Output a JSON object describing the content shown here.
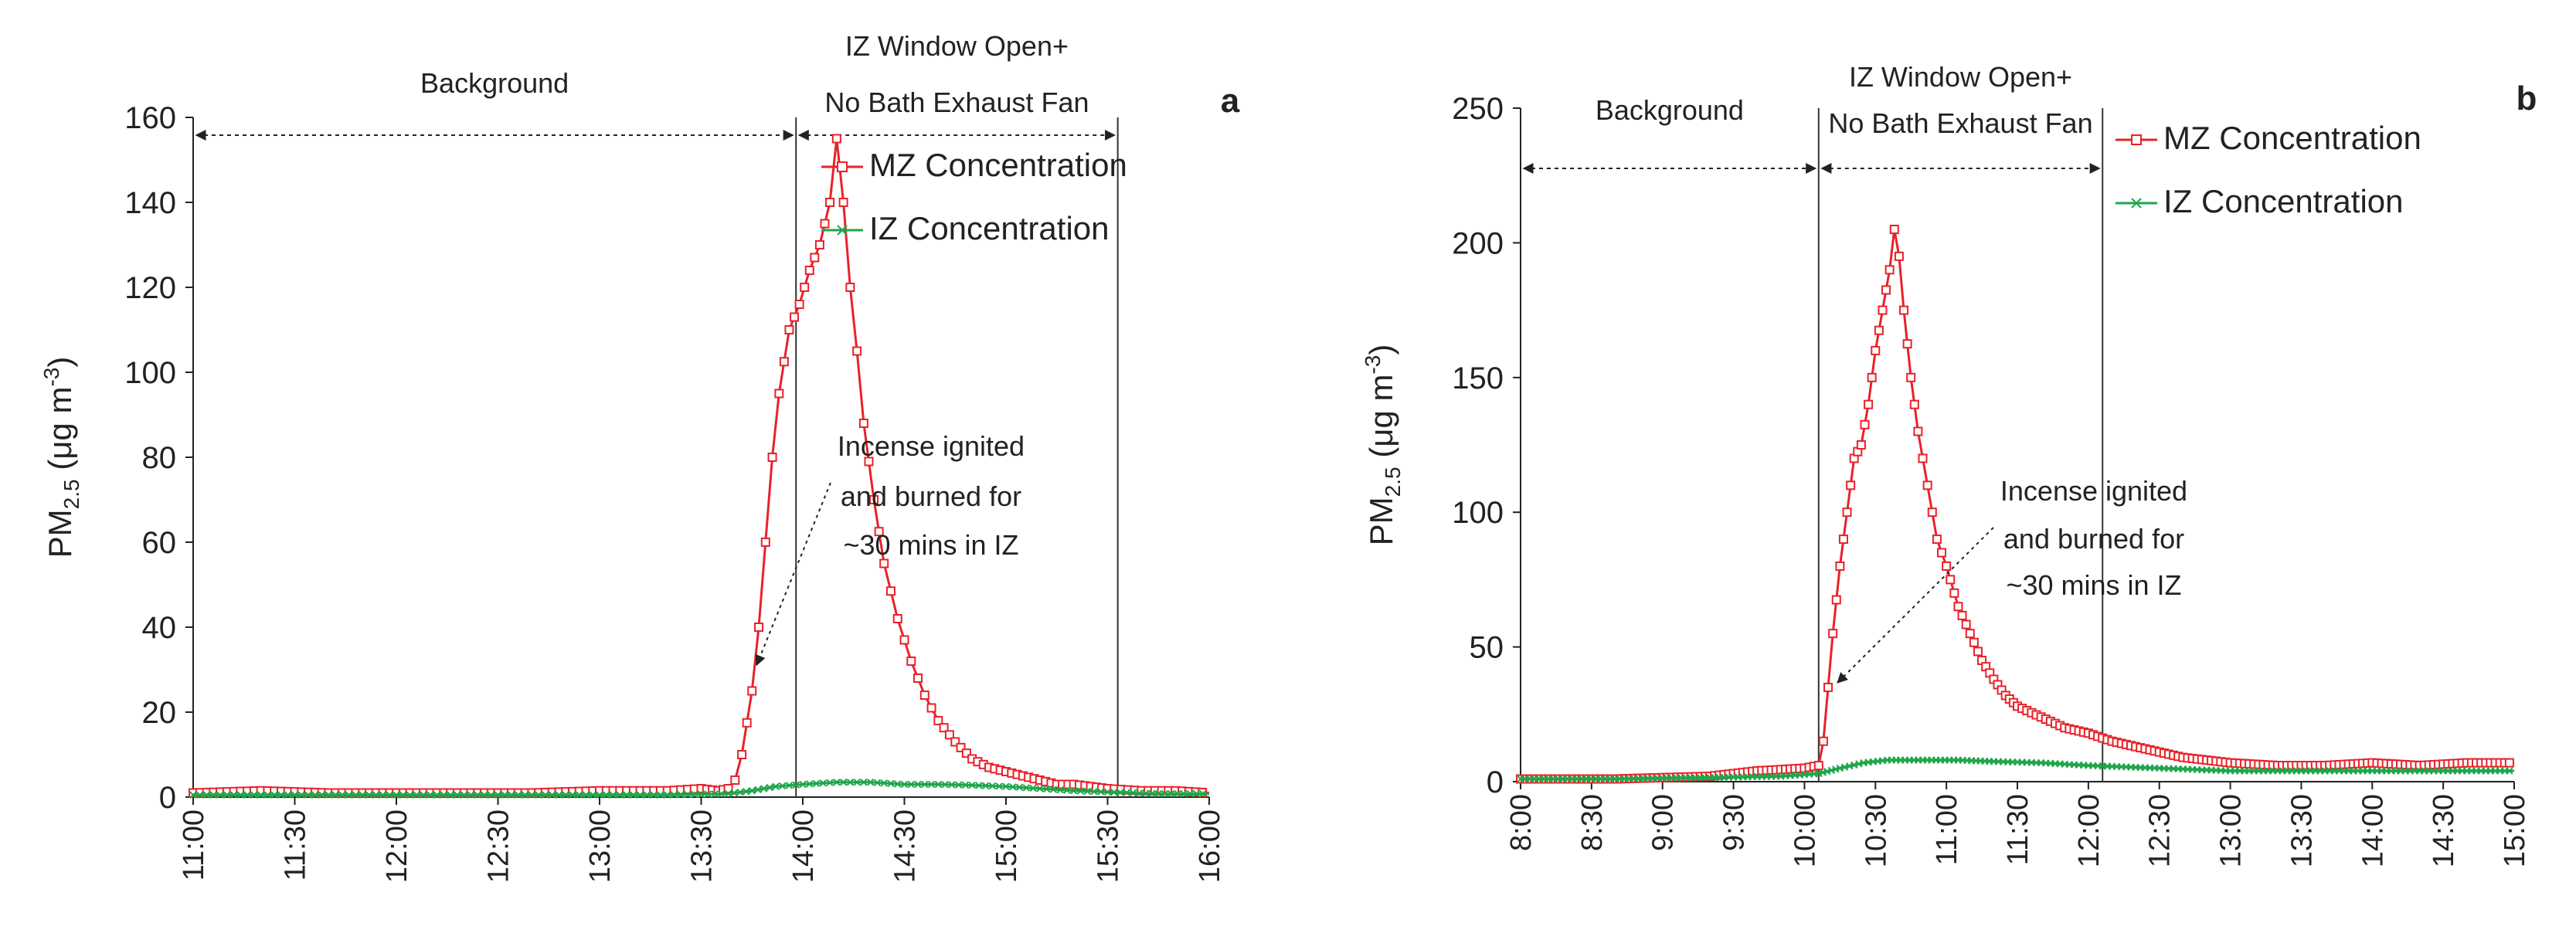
{
  "chart_data": [
    {
      "panel_label": "a",
      "type": "line",
      "ylabel": {
        "base": "PM",
        "sub": "2.5",
        "unit_pre": " (μg m",
        "unit_sup": "-3",
        "unit_post": ")"
      },
      "ylim": [
        0,
        160
      ],
      "yticks": [
        0,
        20,
        40,
        60,
        80,
        100,
        120,
        140,
        160
      ],
      "x_start_min": 660,
      "x_end_min": 960,
      "xticks": [
        "11:00",
        "11:30",
        "12:00",
        "12:30",
        "13:00",
        "13:30",
        "14:00",
        "14:30",
        "15:00",
        "15:30",
        "16:00"
      ],
      "xtick_minutes": [
        660,
        690,
        720,
        750,
        780,
        810,
        840,
        870,
        900,
        930,
        960
      ],
      "phases": [
        {
          "label": "Background",
          "start": 660,
          "end": 838
        },
        {
          "label_lines": [
            "IZ Window Open+",
            "No Bath Exhaust Fan"
          ],
          "start": 838,
          "end": 933
        }
      ],
      "phase_lines": [
        838,
        933
      ],
      "annotation": {
        "lines": [
          "Incense ignited",
          "and burned for",
          "~30 mins in IZ"
        ],
        "arrow_to": [
          825,
          30
        ]
      },
      "series": [
        {
          "name": "MZ Concentration",
          "color": "#e8222a",
          "marker": "square",
          "points": [
            [
              660,
              1
            ],
            [
              680,
              1.5
            ],
            [
              700,
              1
            ],
            [
              720,
              1
            ],
            [
              740,
              1
            ],
            [
              760,
              1
            ],
            [
              780,
              1.5
            ],
            [
              800,
              1.5
            ],
            [
              810,
              2
            ],
            [
              815,
              1.5
            ],
            [
              818,
              2
            ],
            [
              820,
              4
            ],
            [
              822,
              10
            ],
            [
              825,
              25
            ],
            [
              827,
              40
            ],
            [
              829,
              60
            ],
            [
              831,
              80
            ],
            [
              833,
              95
            ],
            [
              836,
              110
            ],
            [
              839,
              116
            ],
            [
              842,
              124
            ],
            [
              845,
              130
            ],
            [
              848,
              140
            ],
            [
              850,
              155
            ],
            [
              852,
              140
            ],
            [
              854,
              120
            ],
            [
              856,
              105
            ],
            [
              858,
              88
            ],
            [
              861,
              70
            ],
            [
              864,
              55
            ],
            [
              868,
              42
            ],
            [
              872,
              32
            ],
            [
              876,
              24
            ],
            [
              880,
              18
            ],
            [
              885,
              13
            ],
            [
              890,
              9
            ],
            [
              895,
              7
            ],
            [
              900,
              6
            ],
            [
              905,
              5
            ],
            [
              910,
              4
            ],
            [
              915,
              3
            ],
            [
              920,
              3
            ],
            [
              925,
              2.5
            ],
            [
              930,
              2
            ],
            [
              940,
              1.5
            ],
            [
              950,
              1.5
            ],
            [
              960,
              1
            ]
          ]
        },
        {
          "name": "IZ Concentration",
          "color": "#1fa64a",
          "marker": "x",
          "points": [
            [
              660,
              0.5
            ],
            [
              680,
              0.5
            ],
            [
              700,
              0.5
            ],
            [
              720,
              0.5
            ],
            [
              740,
              0.5
            ],
            [
              760,
              0.5
            ],
            [
              780,
              0.5
            ],
            [
              800,
              0.5
            ],
            [
              818,
              0.8
            ],
            [
              825,
              1.5
            ],
            [
              832,
              2.5
            ],
            [
              840,
              3
            ],
            [
              850,
              3.5
            ],
            [
              860,
              3.5
            ],
            [
              870,
              3
            ],
            [
              880,
              3
            ],
            [
              890,
              2.8
            ],
            [
              900,
              2.5
            ],
            [
              910,
              2
            ],
            [
              920,
              1.5
            ],
            [
              930,
              1.2
            ],
            [
              945,
              0.8
            ],
            [
              960,
              0.8
            ]
          ]
        }
      ]
    },
    {
      "panel_label": "b",
      "type": "line",
      "ylabel": {
        "base": "PM",
        "sub": "2.5",
        "unit_pre": " (μg m",
        "unit_sup": "-3",
        "unit_post": ")"
      },
      "ylim": [
        0,
        250
      ],
      "yticks": [
        0,
        50,
        100,
        150,
        200,
        250
      ],
      "x_start_min": 480,
      "x_end_min": 900,
      "xticks": [
        "8:00",
        "8:30",
        "9:00",
        "9:30",
        "10:00",
        "10:30",
        "11:00",
        "11:30",
        "12:00",
        "12:30",
        "13:00",
        "13:30",
        "14:00",
        "14:30",
        "15:00"
      ],
      "xtick_minutes": [
        480,
        510,
        540,
        570,
        600,
        630,
        660,
        690,
        720,
        750,
        780,
        810,
        840,
        870,
        900
      ],
      "phases": [
        {
          "label": "Background",
          "start": 480,
          "end": 606
        },
        {
          "label_lines": [
            "IZ Window Open+",
            "No Bath Exhaust Fan"
          ],
          "start": 606,
          "end": 726
        }
      ],
      "phase_lines": [
        606,
        726
      ],
      "annotation": {
        "lines": [
          "Incense ignited",
          "and burned for",
          "~30 mins in IZ"
        ],
        "arrow_to": [
          612,
          35
        ]
      },
      "series": [
        {
          "name": "MZ Concentration",
          "color": "#e8222a",
          "marker": "square",
          "points": [
            [
              480,
              1
            ],
            [
              520,
              1
            ],
            [
              560,
              2
            ],
            [
              580,
              4
            ],
            [
              600,
              5
            ],
            [
              606,
              6
            ],
            [
              608,
              15
            ],
            [
              610,
              35
            ],
            [
              612,
              55
            ],
            [
              615,
              80
            ],
            [
              618,
              100
            ],
            [
              621,
              120
            ],
            [
              624,
              125
            ],
            [
              627,
              140
            ],
            [
              630,
              160
            ],
            [
              633,
              175
            ],
            [
              636,
              190
            ],
            [
              638,
              205
            ],
            [
              640,
              195
            ],
            [
              642,
              175
            ],
            [
              645,
              150
            ],
            [
              648,
              130
            ],
            [
              652,
              110
            ],
            [
              656,
              90
            ],
            [
              660,
              80
            ],
            [
              665,
              65
            ],
            [
              670,
              55
            ],
            [
              675,
              45
            ],
            [
              680,
              38
            ],
            [
              685,
              32
            ],
            [
              690,
              28
            ],
            [
              700,
              24
            ],
            [
              710,
              20
            ],
            [
              720,
              18
            ],
            [
              730,
              15
            ],
            [
              740,
              13
            ],
            [
              750,
              11
            ],
            [
              760,
              9
            ],
            [
              770,
              8
            ],
            [
              780,
              7
            ],
            [
              800,
              6
            ],
            [
              820,
              6
            ],
            [
              840,
              7
            ],
            [
              860,
              6
            ],
            [
              880,
              7
            ],
            [
              900,
              7
            ]
          ]
        },
        {
          "name": "IZ Concentration",
          "color": "#1fa64a",
          "marker": "x",
          "points": [
            [
              480,
              1
            ],
            [
              520,
              1
            ],
            [
              560,
              1.5
            ],
            [
              590,
              2
            ],
            [
              606,
              3
            ],
            [
              615,
              5
            ],
            [
              625,
              7
            ],
            [
              635,
              8
            ],
            [
              650,
              8
            ],
            [
              665,
              8
            ],
            [
              680,
              7.5
            ],
            [
              700,
              7
            ],
            [
              720,
              6
            ],
            [
              750,
              5
            ],
            [
              780,
              4
            ],
            [
              820,
              4
            ],
            [
              860,
              4
            ],
            [
              900,
              4
            ]
          ]
        }
      ]
    }
  ]
}
